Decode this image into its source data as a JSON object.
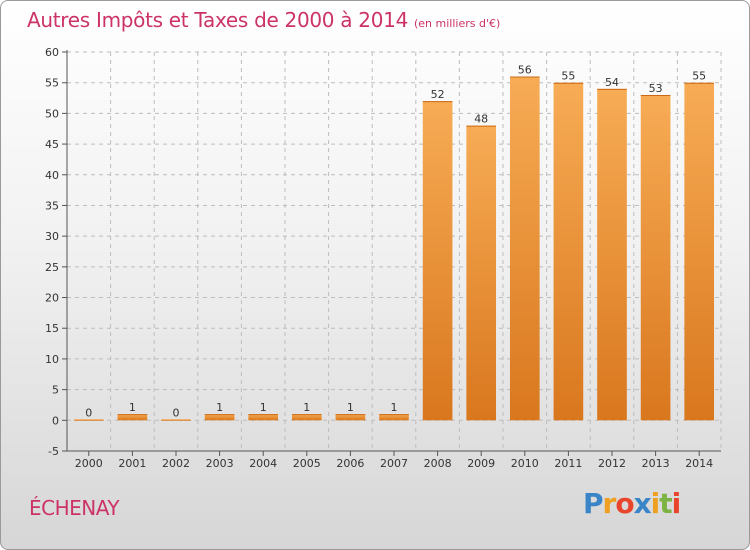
{
  "header": {
    "title": "Autres Impôts et Taxes de 2000 à 2014",
    "subtitle": "(en milliers d'€)"
  },
  "footer": {
    "town": "ÉCHENAY",
    "logo_letters": [
      {
        "ch": "P",
        "color": "#3a84c8"
      },
      {
        "ch": "r",
        "color": "#f0a020"
      },
      {
        "ch": "o",
        "color": "#e8452c"
      },
      {
        "ch": "x",
        "color": "#3a84c8"
      },
      {
        "ch": "i",
        "color": "#f0a020"
      },
      {
        "ch": "t",
        "color": "#7cb342"
      },
      {
        "ch": "i",
        "color": "#e8452c"
      }
    ]
  },
  "chart_data": {
    "type": "bar",
    "categories": [
      "2000",
      "2001",
      "2002",
      "2003",
      "2004",
      "2005",
      "2006",
      "2007",
      "2008",
      "2009",
      "2010",
      "2011",
      "2012",
      "2013",
      "2014"
    ],
    "values": [
      0,
      1,
      0,
      1,
      1,
      1,
      1,
      1,
      52,
      48,
      56,
      55,
      54,
      53,
      55
    ],
    "title": "Autres Impôts et Taxes de 2000 à 2014",
    "ylim": [
      -5,
      60
    ],
    "yticks": [
      -5,
      0,
      5,
      10,
      15,
      20,
      25,
      30,
      35,
      40,
      45,
      50,
      55,
      60
    ],
    "grid": true,
    "bar_color": "#f4a04a",
    "bar_color_dark": "#d9771e"
  }
}
